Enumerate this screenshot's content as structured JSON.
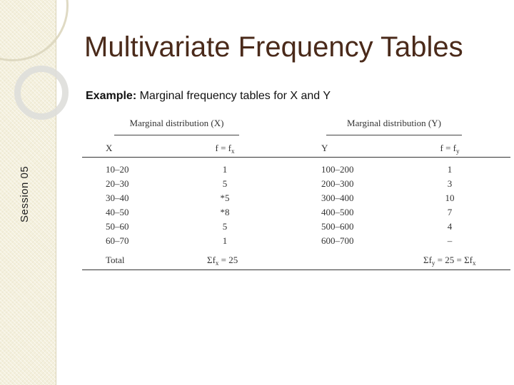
{
  "slide": {
    "title": "Multivariate Frequency Tables",
    "session_label": "Session 05",
    "example_label": "Example:",
    "example_text": " Marginal frequency tables for X and Y"
  },
  "table": {
    "group_x": "Marginal distribution (X)",
    "group_y": "Marginal distribution (Y)",
    "headers": {
      "x": "X",
      "fx_main": "f = f",
      "fx_sub": "x",
      "y": "Y",
      "fy_main": "f = f",
      "fy_sub": "y"
    },
    "rows": [
      {
        "x": "10–20",
        "fx": "1",
        "y": "100–200",
        "fy": "1"
      },
      {
        "x": "20–30",
        "fx": "5",
        "y": "200–300",
        "fy": "3"
      },
      {
        "x": "30–40",
        "fx": "*5",
        "y": "300–400",
        "fy": "10"
      },
      {
        "x": "40–50",
        "fx": "*8",
        "y": "400–500",
        "fy": "7"
      },
      {
        "x": "50–60",
        "fx": "5",
        "y": "500–600",
        "fy": "4"
      },
      {
        "x": "60–70",
        "fx": "1",
        "y": "600–700",
        "fy": "–"
      }
    ],
    "total": {
      "label": "Total",
      "fx_a": "Σf",
      "fx_sub": "x",
      "fx_b": " = 25",
      "fy_a": "Σf",
      "fy_sub1": "y",
      "fy_b": " = 25 = Σf",
      "fy_sub2": "x"
    }
  }
}
